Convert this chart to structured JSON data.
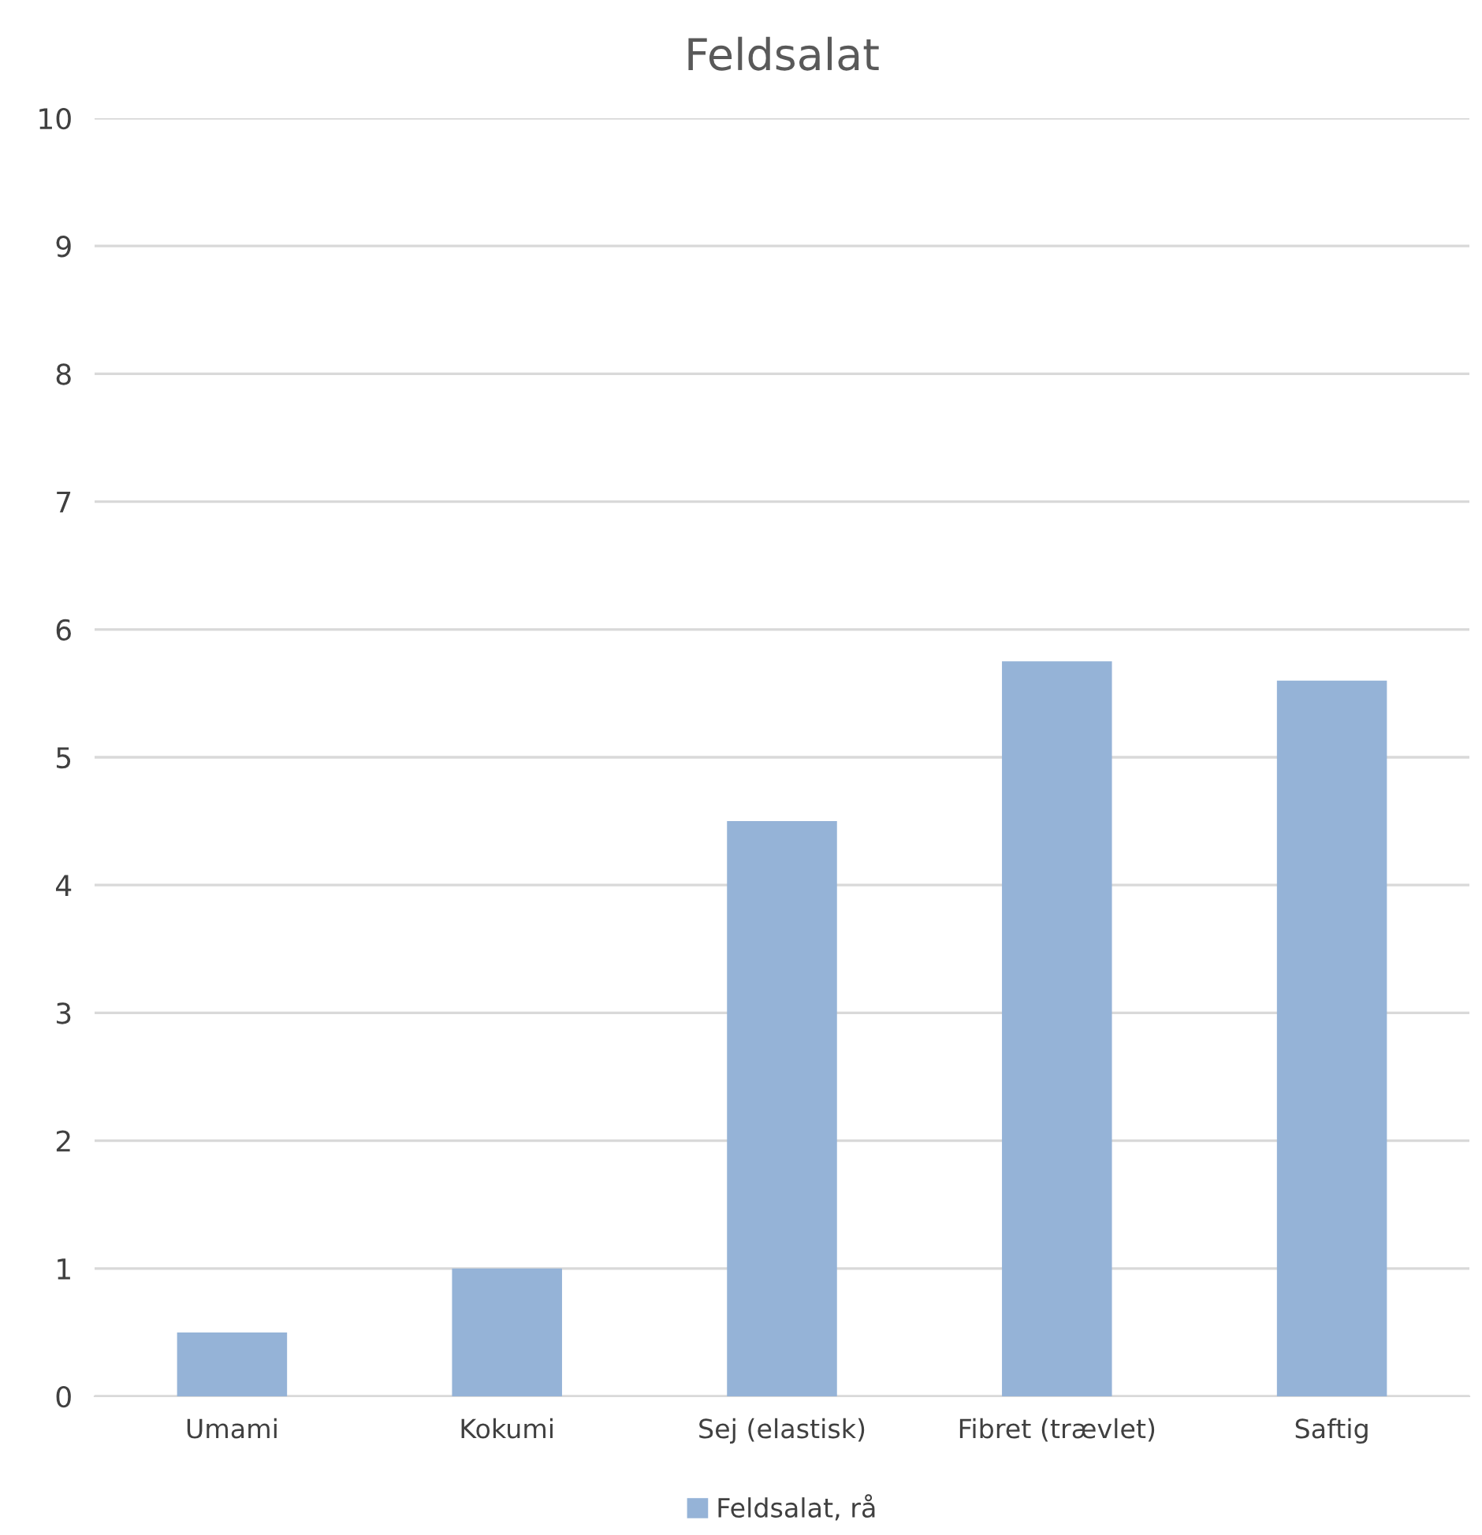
{
  "chart_data": {
    "type": "bar",
    "title": "Feldsalat",
    "categories": [
      "Umami",
      "Kokumi",
      "Sej (elastisk)",
      "Fibret (trævlet)",
      "Saftig"
    ],
    "series": [
      {
        "name": "Feldsalat, rå",
        "color": "#95b3d7",
        "values": [
          0.5,
          1.0,
          4.5,
          5.75,
          5.6
        ]
      }
    ],
    "ylim": [
      0,
      10
    ],
    "yticks": [
      0,
      1,
      2,
      3,
      4,
      5,
      6,
      7,
      8,
      9,
      10
    ],
    "grid": "y",
    "legend": "bottom"
  }
}
